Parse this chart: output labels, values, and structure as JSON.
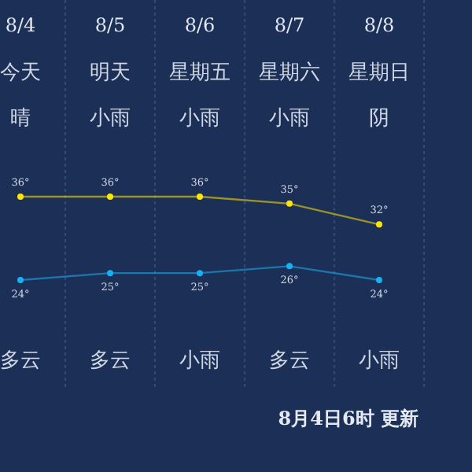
{
  "chart_data": {
    "type": "line",
    "categories": [
      "8/4",
      "8/5",
      "8/6",
      "8/7",
      "8/8"
    ],
    "series": [
      {
        "color": "#ffe600",
        "values": [
          36,
          36,
          36,
          35,
          32
        ],
        "value_labels": [
          "36°",
          "36°",
          "36°",
          "35°",
          "32°"
        ]
      },
      {
        "color": "#1ab0f0",
        "values": [
          24,
          25,
          25,
          26,
          24
        ],
        "value_labels": [
          "24°",
          "25°",
          "25°",
          "26°",
          "24°"
        ]
      }
    ],
    "marker": "circle",
    "grid": "x",
    "annotations": [
      "今天",
      "明天",
      "星期五",
      "星期六",
      "星期日",
      "晴",
      "小雨",
      "小雨",
      "小雨",
      "阴",
      "多云",
      "多云",
      "小雨",
      "多云",
      "小雨",
      "8月4日6时 更新"
    ]
  }
}
